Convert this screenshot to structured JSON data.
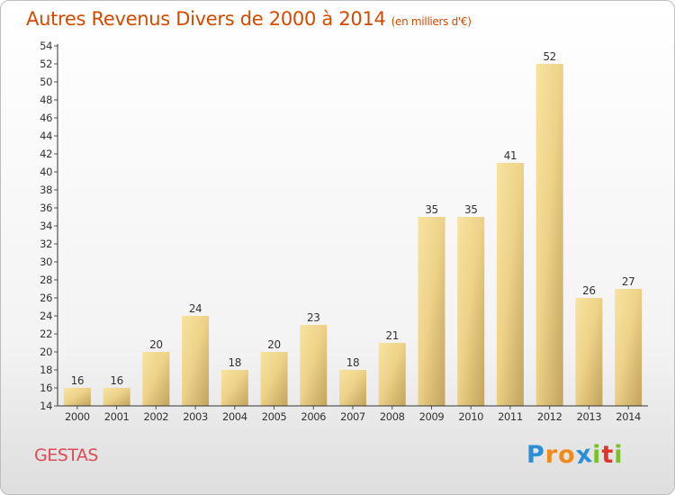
{
  "title": "Autres Revenus Divers de 2000 à 2014",
  "subtitle": "(en milliers d'€)",
  "commune": "GESTAS",
  "logo": {
    "letters": [
      "P",
      "r",
      "o",
      "x",
      "i",
      "t",
      "i"
    ],
    "colors": [
      "#2b8fd6",
      "#f08a1c",
      "#f08a1c",
      "#2b8fd6",
      "#7bbf2a",
      "#e0352b",
      "#7bbf2a"
    ]
  },
  "colors": {
    "bar_light": "#f4dc8a",
    "bar_dark": "#c4a860",
    "title": "#d44a00",
    "commune": "#e04a55"
  },
  "chart_data": {
    "type": "bar",
    "categories": [
      "2000",
      "2001",
      "2002",
      "2003",
      "2004",
      "2005",
      "2006",
      "2007",
      "2008",
      "2009",
      "2010",
      "2011",
      "2012",
      "2013",
      "2014"
    ],
    "values": [
      16,
      16,
      20,
      24,
      18,
      20,
      23,
      18,
      21,
      35,
      35,
      41,
      52,
      26,
      27
    ],
    "ylim": [
      14,
      54
    ],
    "yticks": [
      14,
      16,
      18,
      20,
      22,
      24,
      26,
      28,
      30,
      32,
      34,
      36,
      38,
      40,
      42,
      44,
      46,
      48,
      50,
      52,
      54
    ],
    "grid": false,
    "data_labels": true
  }
}
